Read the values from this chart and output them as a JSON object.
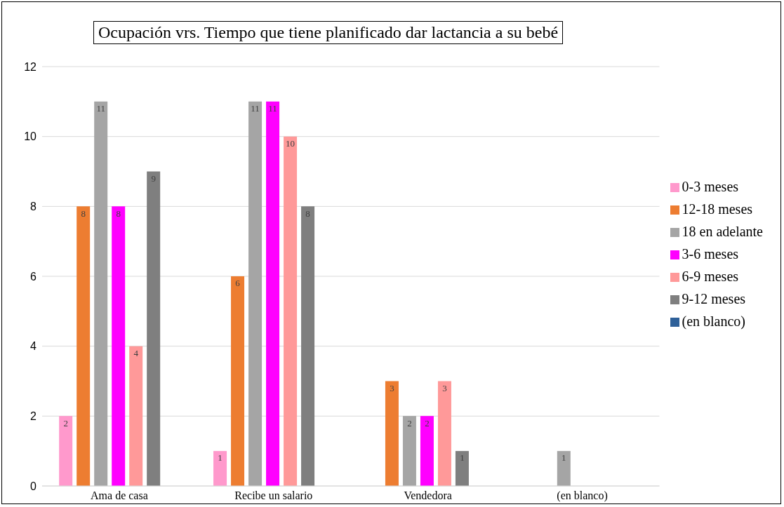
{
  "chart_data": {
    "type": "bar",
    "title": "Ocupación vrs. Tiempo que tiene planificado dar lactancia a su bebé",
    "categories": [
      "Ama de casa",
      "Recibe un salario",
      "Vendedora",
      "(en blanco)"
    ],
    "series": [
      {
        "name": "0-3 meses",
        "color": "#ff99cc",
        "values": [
          2,
          1,
          null,
          null
        ]
      },
      {
        "name": "12-18 meses",
        "color": "#ed7d31",
        "values": [
          8,
          6,
          3,
          null
        ]
      },
      {
        "name": "18 en adelante",
        "color": "#a5a5a5",
        "values": [
          11,
          11,
          2,
          1
        ]
      },
      {
        "name": "3-6 meses",
        "color": "#ff00ff",
        "values": [
          8,
          11,
          2,
          null
        ]
      },
      {
        "name": "6-9 meses",
        "color": "#ff9999",
        "values": [
          4,
          10,
          3,
          null
        ]
      },
      {
        "name": "9-12 meses",
        "color": "#7f7f7f",
        "values": [
          9,
          8,
          1,
          null
        ]
      },
      {
        "name": "(en blanco)",
        "color": "#2e6099",
        "values": [
          null,
          null,
          null,
          null
        ]
      }
    ],
    "ylim": [
      0,
      12
    ],
    "yticks": [
      0,
      2,
      4,
      6,
      8,
      10,
      12
    ],
    "grid": "y",
    "legend": "right",
    "data_labels": true
  }
}
